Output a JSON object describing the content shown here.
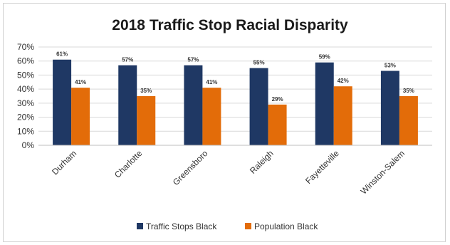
{
  "chart_data": {
    "type": "bar",
    "title": "2018 Traffic Stop Racial Disparity",
    "xlabel": "",
    "ylabel": "",
    "categories": [
      "Durham",
      "Charlotte",
      "Greensboro",
      "Raleigh",
      "Fayetteville",
      "Winston-Salem"
    ],
    "series": [
      {
        "name": "Traffic Stops Black",
        "color": "#1f3864",
        "values": [
          61,
          57,
          57,
          55,
          59,
          53
        ],
        "labels": [
          "61%",
          "57%",
          "57%",
          "55%",
          "59%",
          "53%"
        ]
      },
      {
        "name": "Population Black",
        "color": "#e36c09",
        "values": [
          41,
          35,
          41,
          29,
          42,
          35
        ],
        "labels": [
          "41%",
          "35%",
          "41%",
          "29%",
          "42%",
          "35%"
        ]
      }
    ],
    "ylim": [
      0,
      70
    ],
    "yticks": [
      0,
      10,
      20,
      30,
      40,
      50,
      60,
      70
    ],
    "ytick_labels": [
      "0%",
      "10%",
      "20%",
      "30%",
      "40%",
      "50%",
      "60%",
      "70%"
    ],
    "grid": "horizontal",
    "legend_position": "bottom"
  }
}
